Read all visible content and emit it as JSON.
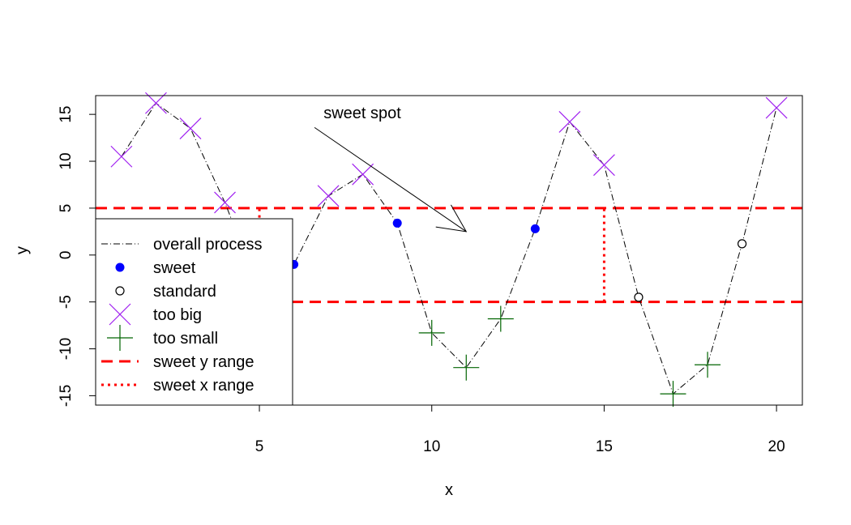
{
  "chart_data": {
    "type": "scatter",
    "xlabel": "x",
    "ylabel": "y",
    "xlim": [
      0.25,
      20.75
    ],
    "ylim": [
      -16,
      17
    ],
    "x_ticks": [
      5,
      10,
      15,
      20
    ],
    "y_ticks": [
      -15,
      -10,
      -5,
      0,
      5,
      10,
      15
    ],
    "grid": false,
    "points": [
      {
        "x": 1,
        "y": 10.5,
        "category": "too big"
      },
      {
        "x": 2,
        "y": 16.2,
        "category": "too big"
      },
      {
        "x": 3,
        "y": 13.5,
        "category": "too big"
      },
      {
        "x": 4,
        "y": 5.6,
        "category": "too big"
      },
      {
        "x": 5,
        "y": -3.8,
        "category": "standard"
      },
      {
        "x": 6,
        "y": -1.0,
        "category": "sweet"
      },
      {
        "x": 7,
        "y": 6.3,
        "category": "too big"
      },
      {
        "x": 8,
        "y": 8.6,
        "category": "too big"
      },
      {
        "x": 9,
        "y": 3.4,
        "category": "sweet"
      },
      {
        "x": 10,
        "y": -8.3,
        "category": "too small"
      },
      {
        "x": 11,
        "y": -12.0,
        "category": "too small"
      },
      {
        "x": 12,
        "y": -6.8,
        "category": "too small"
      },
      {
        "x": 13,
        "y": 2.8,
        "category": "sweet"
      },
      {
        "x": 14,
        "y": 14.2,
        "category": "too big"
      },
      {
        "x": 15,
        "y": 9.6,
        "category": "too big"
      },
      {
        "x": 16,
        "y": -4.5,
        "category": "standard"
      },
      {
        "x": 17,
        "y": -14.8,
        "category": "too small"
      },
      {
        "x": 18,
        "y": -11.7,
        "category": "too small"
      },
      {
        "x": 19,
        "y": 1.2,
        "category": "standard"
      },
      {
        "x": 20,
        "y": 15.7,
        "category": "too big"
      }
    ],
    "sweet_y_range": [
      -5,
      5
    ],
    "sweet_x_range": [
      5,
      15
    ],
    "annotation": {
      "text": "sweet spot",
      "from": [
        6.6,
        13.6
      ],
      "to": [
        11,
        2.5
      ]
    },
    "legend": {
      "position": "bottom-left",
      "items": [
        {
          "label": "overall process",
          "type": "dashdot-line",
          "color": "#000000"
        },
        {
          "label": "sweet",
          "type": "filled-circle",
          "color": "#0000ff"
        },
        {
          "label": "standard",
          "type": "open-circle",
          "color": "#000000"
        },
        {
          "label": "too big",
          "type": "cross",
          "color": "#a020f0"
        },
        {
          "label": "too small",
          "type": "plus",
          "color": "#006400"
        },
        {
          "label": "sweet y range",
          "type": "dashed-line",
          "color": "#ff0000"
        },
        {
          "label": "sweet x range",
          "type": "dotted-line",
          "color": "#ff0000"
        }
      ]
    },
    "colors": {
      "sweet": "#0000ff",
      "standard": "#000000",
      "too_big": "#a020f0",
      "too_small": "#006400",
      "range": "#ff0000"
    }
  }
}
